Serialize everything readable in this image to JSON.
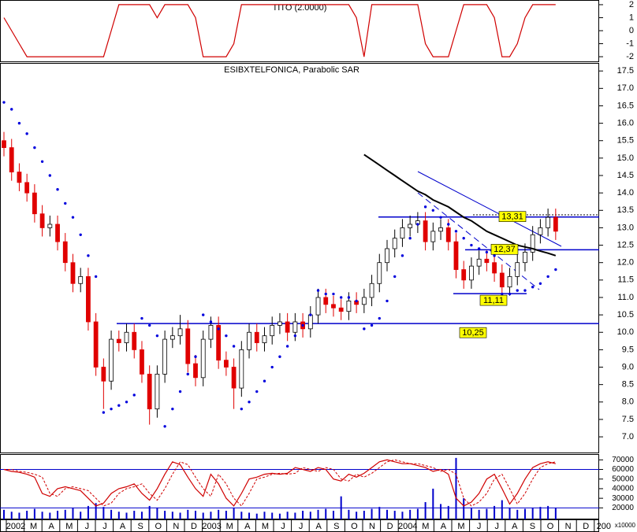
{
  "chart_data": [
    {
      "type": "line",
      "title": "TITO (2.0000)",
      "color": "#d00000",
      "values": [
        1,
        0,
        -1,
        -2,
        -2,
        -2,
        -2,
        -2,
        -2,
        -2,
        -2,
        -2,
        -2,
        -2,
        0,
        2,
        2,
        2,
        2,
        2,
        1,
        2,
        2,
        2,
        2,
        1,
        -2,
        -2,
        -2,
        -2,
        -1,
        2,
        2,
        2,
        2,
        2,
        2,
        2,
        2,
        2,
        2,
        2,
        2,
        2,
        2,
        2,
        1,
        -2,
        2,
        2,
        2,
        2,
        2,
        2,
        2,
        -1,
        -2,
        -2,
        -2,
        0,
        2,
        2,
        2,
        2,
        1,
        -2,
        -2,
        -1,
        1,
        2,
        2,
        2,
        2
      ],
      "ylim": [
        -2.36,
        2.36
      ],
      "yticks": [
        2,
        1,
        0,
        -1,
        -2
      ]
    },
    {
      "type": "candlestick",
      "title": "ESIBXTELFONICA, Parabolic SAR",
      "up_color": "#ffffff",
      "down_color": "#e00000",
      "open": [
        15.5,
        15.3,
        14.6,
        14.3,
        14.0,
        13.4,
        13.0,
        13.1,
        12.6,
        12.0,
        11.4,
        11.6,
        10.3,
        9.0,
        8.6,
        9.8,
        9.7,
        10.0,
        9.5,
        8.8,
        7.8,
        8.8,
        9.8,
        9.9,
        10.1,
        9.1,
        8.7,
        9.8,
        10.2,
        9.2,
        9.0,
        8.4,
        9.5,
        10.0,
        9.7,
        9.9,
        10.2,
        10.3,
        10.0,
        10.3,
        10.1,
        10.5,
        11.0,
        10.8,
        10.7,
        10.6,
        10.9,
        10.8,
        11.0,
        11.4,
        12.0,
        12.4,
        12.7,
        13.0,
        13.1,
        13.2,
        12.6,
        12.9,
        13.0,
        12.6,
        11.8,
        11.5,
        11.9,
        12.1,
        12.0,
        11.7,
        11.3,
        11.6,
        12.0,
        12.3,
        12.8,
        13.0,
        13.3
      ],
      "high": [
        15.75,
        15.55,
        14.85,
        14.55,
        14.25,
        13.65,
        13.35,
        13.35,
        12.85,
        12.25,
        11.85,
        11.85,
        10.55,
        9.25,
        10.05,
        10.05,
        10.25,
        10.25,
        9.75,
        9.05,
        9.05,
        10.05,
        10.15,
        10.5,
        10.35,
        9.35,
        10.05,
        10.45,
        10.45,
        9.45,
        9.25,
        9.75,
        10.25,
        10.25,
        10.15,
        10.45,
        10.55,
        10.55,
        10.55,
        10.55,
        10.75,
        11.25,
        11.25,
        11.05,
        10.95,
        11.15,
        11.15,
        11.25,
        11.65,
        12.25,
        12.65,
        12.95,
        13.25,
        13.35,
        13.45,
        13.45,
        13.15,
        13.25,
        13.25,
        12.85,
        12.05,
        12.15,
        12.35,
        12.35,
        12.25,
        11.95,
        11.85,
        12.25,
        12.55,
        13.05,
        13.25,
        13.55,
        13.55
      ],
      "low": [
        15.05,
        14.35,
        14.05,
        13.75,
        13.15,
        12.75,
        12.75,
        12.35,
        11.75,
        11.15,
        11.15,
        10.05,
        8.75,
        7.8,
        8.35,
        9.45,
        9.45,
        9.25,
        8.55,
        7.35,
        7.55,
        8.55,
        9.55,
        9.65,
        8.85,
        8.45,
        8.45,
        9.55,
        8.95,
        8.75,
        7.8,
        8.15,
        9.25,
        9.45,
        9.45,
        9.65,
        9.95,
        9.75,
        9.75,
        9.85,
        9.85,
        10.25,
        10.55,
        10.45,
        10.35,
        10.35,
        10.55,
        10.55,
        10.75,
        11.15,
        11.75,
        12.15,
        12.45,
        12.75,
        12.85,
        12.35,
        12.35,
        12.65,
        12.35,
        11.55,
        11.25,
        11.25,
        11.65,
        11.75,
        11.45,
        11.05,
        11.05,
        11.35,
        11.75,
        12.05,
        12.55,
        12.75,
        12.65
      ],
      "close": [
        15.3,
        14.6,
        14.3,
        14.0,
        13.4,
        13.0,
        13.1,
        12.6,
        12.0,
        11.4,
        11.6,
        10.3,
        9.0,
        8.6,
        9.8,
        9.7,
        10.0,
        9.5,
        8.8,
        7.8,
        8.8,
        9.8,
        9.9,
        10.1,
        9.1,
        8.7,
        9.8,
        10.2,
        9.2,
        9.0,
        8.4,
        9.5,
        10.0,
        9.7,
        9.9,
        10.2,
        10.3,
        10.0,
        10.3,
        10.1,
        10.5,
        11.0,
        10.8,
        10.7,
        10.6,
        10.9,
        10.8,
        11.0,
        11.4,
        12.0,
        12.4,
        12.7,
        13.0,
        13.1,
        13.2,
        12.6,
        12.9,
        13.0,
        12.6,
        11.8,
        11.5,
        11.9,
        12.1,
        12.0,
        11.7,
        11.3,
        11.6,
        12.0,
        12.3,
        12.8,
        13.0,
        13.3,
        12.9
      ],
      "sar": {
        "color": "#0000dd",
        "values": [
          16.6,
          16.4,
          16.0,
          15.7,
          15.3,
          14.9,
          14.5,
          14.1,
          13.7,
          13.3,
          12.8,
          12.2,
          11.6,
          7.7,
          7.8,
          7.9,
          8.0,
          8.2,
          10.4,
          10.2,
          9.9,
          7.3,
          7.8,
          8.3,
          8.8,
          9.3,
          10.5,
          10.3,
          10.1,
          9.9,
          9.6,
          7.8,
          8.0,
          8.3,
          8.6,
          9.0,
          9.3,
          9.6,
          9.9,
          10.2,
          10.5,
          11.2,
          11.1,
          11.1,
          11.0,
          11.0,
          10.9,
          10.1,
          10.2,
          10.4,
          10.9,
          11.6,
          12.2,
          12.7,
          13.1,
          13.6,
          13.5,
          13.3,
          13.1,
          12.9,
          12.7,
          12.5,
          12.4,
          12.3,
          12.2,
          11.1,
          11.1,
          11.2,
          11.2,
          11.3,
          11.4,
          11.6,
          11.8
        ]
      },
      "ma": {
        "color": "#000000",
        "values": [
          null,
          null,
          null,
          null,
          null,
          null,
          null,
          null,
          null,
          null,
          null,
          null,
          null,
          null,
          null,
          null,
          null,
          null,
          null,
          null,
          null,
          null,
          null,
          null,
          null,
          null,
          null,
          null,
          null,
          null,
          null,
          null,
          null,
          null,
          null,
          null,
          null,
          null,
          null,
          null,
          null,
          null,
          null,
          null,
          null,
          null,
          null,
          15.1,
          14.95,
          14.8,
          14.65,
          14.5,
          14.35,
          14.2,
          14.05,
          13.95,
          13.8,
          13.7,
          13.6,
          13.45,
          13.3,
          13.2,
          13.05,
          12.9,
          12.8,
          12.7,
          12.6,
          12.5,
          12.45,
          12.4,
          12.33,
          12.27,
          12.2
        ]
      },
      "levels": [
        {
          "value": 13.31,
          "label": "13,31"
        },
        {
          "value": 12.37,
          "label": "12,37"
        },
        {
          "value": 11.11,
          "label": "11,11"
        },
        {
          "value": 10.25,
          "label": "10,25"
        }
      ],
      "level_color": "#0000cc",
      "label_color": "#ffff00",
      "ylim": [
        6.55,
        17.73
      ],
      "yticks": [
        {
          "value": 7,
          "label": "7.0"
        },
        7.5,
        {
          "value": 8,
          "label": "8.0"
        },
        8.5,
        {
          "value": 9,
          "label": "9.0"
        },
        9.5,
        {
          "value": 10,
          "label": "10.0"
        },
        10.5,
        {
          "value": 11,
          "label": "11.0"
        },
        11.5,
        {
          "value": 12,
          "label": "12.0"
        },
        12.5,
        {
          "value": 13,
          "label": "13.0"
        },
        13.5,
        {
          "value": 14,
          "label": "14.0"
        },
        14.5,
        {
          "value": 15,
          "label": "15.0"
        },
        15.5,
        {
          "value": 16,
          "label": "16.0"
        },
        16.5,
        {
          "value": 17,
          "label": "17.0"
        },
        17.5
      ]
    },
    {
      "type": "volume",
      "bar_color": "#0000cc",
      "line_color": "#d00000",
      "hline_color": "#0000cc",
      "volume": [
        18000,
        16000,
        15000,
        17000,
        19000,
        16000,
        15000,
        17000,
        18000,
        20000,
        16000,
        22000,
        25000,
        21000,
        18000,
        16000,
        15000,
        17000,
        16000,
        22000,
        20000,
        17000,
        16000,
        15000,
        18000,
        17000,
        15000,
        16000,
        18000,
        17000,
        20000,
        16000,
        15000,
        14000,
        16000,
        15000,
        14000,
        16000,
        15000,
        17000,
        16000,
        18000,
        19000,
        17000,
        32000,
        18000,
        16000,
        17000,
        19000,
        21000,
        18000,
        17000,
        16000,
        18000,
        19000,
        26000,
        40000,
        24000,
        22000,
        72000,
        30000,
        20000,
        18000,
        19000,
        22000,
        28000,
        20000,
        18000,
        19000,
        20000,
        21000,
        22000,
        20000
      ],
      "oscillator": [
        60000,
        58000,
        57000,
        55000,
        52000,
        35000,
        32000,
        40000,
        42000,
        40000,
        38000,
        30000,
        22000,
        25000,
        35000,
        40000,
        42000,
        45000,
        35000,
        28000,
        40000,
        55000,
        68000,
        65000,
        52000,
        40000,
        32000,
        55000,
        45000,
        30000,
        22000,
        35000,
        50000,
        52000,
        55000,
        56000,
        55000,
        56000,
        62000,
        60000,
        58000,
        62000,
        60000,
        50000,
        48000,
        55000,
        52000,
        56000,
        62000,
        68000,
        70000,
        68000,
        66000,
        66000,
        64000,
        62000,
        58000,
        60000,
        55000,
        30000,
        22000,
        26000,
        35000,
        50000,
        55000,
        40000,
        24000,
        35000,
        50000,
        62000,
        66000,
        68000,
        66000
      ],
      "signal": [
        60000,
        60000,
        58000,
        57000,
        55000,
        52000,
        35000,
        32000,
        40000,
        42000,
        40000,
        38000,
        30000,
        22000,
        25000,
        35000,
        40000,
        42000,
        45000,
        35000,
        28000,
        40000,
        55000,
        68000,
        65000,
        52000,
        40000,
        32000,
        55000,
        45000,
        30000,
        22000,
        35000,
        50000,
        52000,
        55000,
        56000,
        55000,
        56000,
        62000,
        60000,
        58000,
        62000,
        60000,
        50000,
        48000,
        55000,
        52000,
        56000,
        62000,
        68000,
        70000,
        68000,
        66000,
        66000,
        64000,
        62000,
        58000,
        60000,
        55000,
        30000,
        22000,
        26000,
        35000,
        50000,
        55000,
        40000,
        24000,
        35000,
        50000,
        62000,
        66000,
        68000
      ],
      "hlines": [
        60000,
        20000
      ],
      "ylim": [
        8000,
        76000
      ],
      "yticks": [
        70000,
        60000,
        50000,
        40000,
        30000,
        20000
      ],
      "unit_label": "x10000",
      "categories": [
        "2002",
        "M",
        "A",
        "M",
        "J",
        "J",
        "A",
        "S",
        "O",
        "N",
        "D",
        "2003",
        "M",
        "A",
        "M",
        "J",
        "J",
        "A",
        "S",
        "O",
        "N",
        "D",
        "2004",
        "M",
        "A",
        "M",
        "J",
        "J",
        "A",
        "S",
        "O",
        "N",
        "D",
        "200"
      ]
    }
  ]
}
